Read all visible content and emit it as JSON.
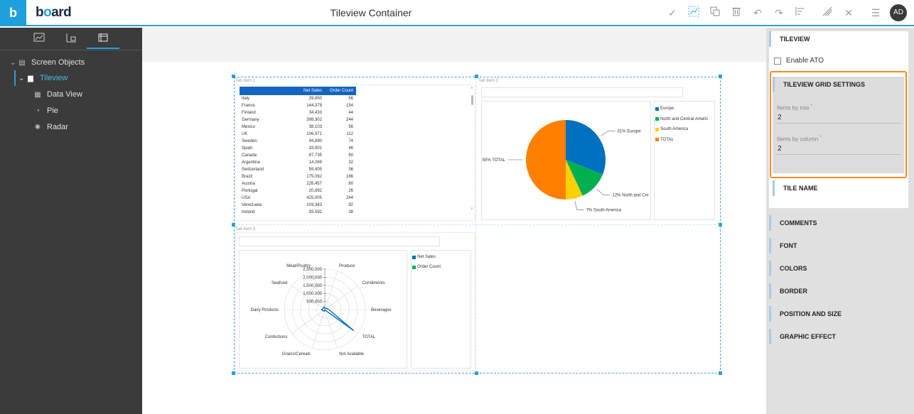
{
  "app": {
    "logo_letter": "b",
    "brand_prefix": "b",
    "brand_o": "o",
    "brand_suffix": "ard",
    "title": "Tileview Container",
    "avatar": "AD"
  },
  "toolbar": {
    "icons": [
      "check-icon",
      "chart-edit-icon",
      "copy-icon",
      "trash-icon",
      "undo-icon",
      "redo-icon",
      "align-icon",
      "draw-icon",
      "close-icon",
      "menu-icon"
    ]
  },
  "left_panel": {
    "tabs": [
      "screen-icon",
      "chart-settings-icon",
      "container-icon"
    ],
    "tree": {
      "root": "Screen Objects",
      "tileview": "Tileview",
      "children": [
        "Data View",
        "Pie",
        "Radar"
      ]
    }
  },
  "tiles": {
    "tab1": "Tab Item 1",
    "tab2": "Tab Item 2",
    "tab3": "Tab Item 3"
  },
  "table": {
    "headers": [
      "",
      "Net Sales",
      "Order Count"
    ],
    "rows": [
      [
        "Italy",
        "29,850",
        "56"
      ],
      [
        "France",
        "144,378",
        "154"
      ],
      [
        "Finland",
        "34,433",
        "44"
      ],
      [
        "Germany",
        "398,302",
        "244"
      ],
      [
        "Mexico",
        "38,103",
        "56"
      ],
      [
        "UK",
        "106,971",
        "112"
      ],
      [
        "Sweden",
        "94,890",
        "74"
      ],
      [
        "Spain",
        "33,901",
        "46"
      ],
      [
        "Canada",
        "87,735",
        "60"
      ],
      [
        "Argentina",
        "14,069",
        "32"
      ],
      [
        "Switzerland",
        "59,405",
        "36"
      ],
      [
        "Brazil",
        "175,092",
        "186"
      ],
      [
        "Austria",
        "226,457",
        "80"
      ],
      [
        "Portugal",
        "20,892",
        "26"
      ],
      [
        "USA",
        "425,005",
        "244"
      ],
      [
        "Venezuela",
        "103,343",
        "92"
      ],
      [
        "Ireland",
        "93,592",
        "38"
      ]
    ]
  },
  "chart_data": [
    {
      "type": "pie",
      "labels": [
        "Europe",
        "North and Central America",
        "South America",
        "TOTAL"
      ],
      "values": [
        31,
        12,
        7,
        50
      ],
      "slice_labels": [
        "31% Europe",
        "12% North and Cer",
        "7% South America",
        "50% TOTAL"
      ],
      "colors": [
        "#0070c0",
        "#00b050",
        "#ffd000",
        "#ff7f00"
      ],
      "legend": [
        "Europe",
        "North and Central Americ",
        "South America",
        "TOTAL"
      ],
      "legend_position": "right"
    },
    {
      "type": "radar",
      "axes": [
        "Produce",
        "Condiments",
        "Beverages",
        "TOTAL",
        "Not Available",
        "Grains/Cereals",
        "Confections",
        "Dairy Products",
        "Seafood",
        "Meat/Poultry"
      ],
      "radial_ticks": [
        "2,500,000",
        "2,000,000",
        "1,500,000",
        "1,000,000",
        "500,000"
      ],
      "rmax": 2500000,
      "series": [
        {
          "name": "Net Sales",
          "color": "#0070c0",
          "values": [
            90000,
            120000,
            250000,
            2200000,
            20000,
            100000,
            120000,
            200000,
            130000,
            170000
          ]
        },
        {
          "name": "Order Count",
          "color": "#00b050",
          "values": [
            0,
            0,
            0,
            0,
            0,
            0,
            0,
            0,
            0,
            0
          ]
        }
      ],
      "legend": [
        "Net Sales",
        "Order Count"
      ],
      "legend_position": "right"
    }
  ],
  "right_panel": {
    "tileview_header": "TILEVIEW",
    "enable_ato": "Enable ATO",
    "grid_header": "TILEVIEW GRID SETTINGS",
    "items_by_row_label": "Items by row",
    "items_by_row": "2",
    "items_by_column_label": "Items by column",
    "items_by_column": "2",
    "required_mark": "*",
    "tile_name": "TILE NAME",
    "sections": [
      "COMMENTS",
      "FONT",
      "COLORS",
      "BORDER",
      "POSITION AND SIZE",
      "GRAPHIC EFFECT"
    ]
  }
}
